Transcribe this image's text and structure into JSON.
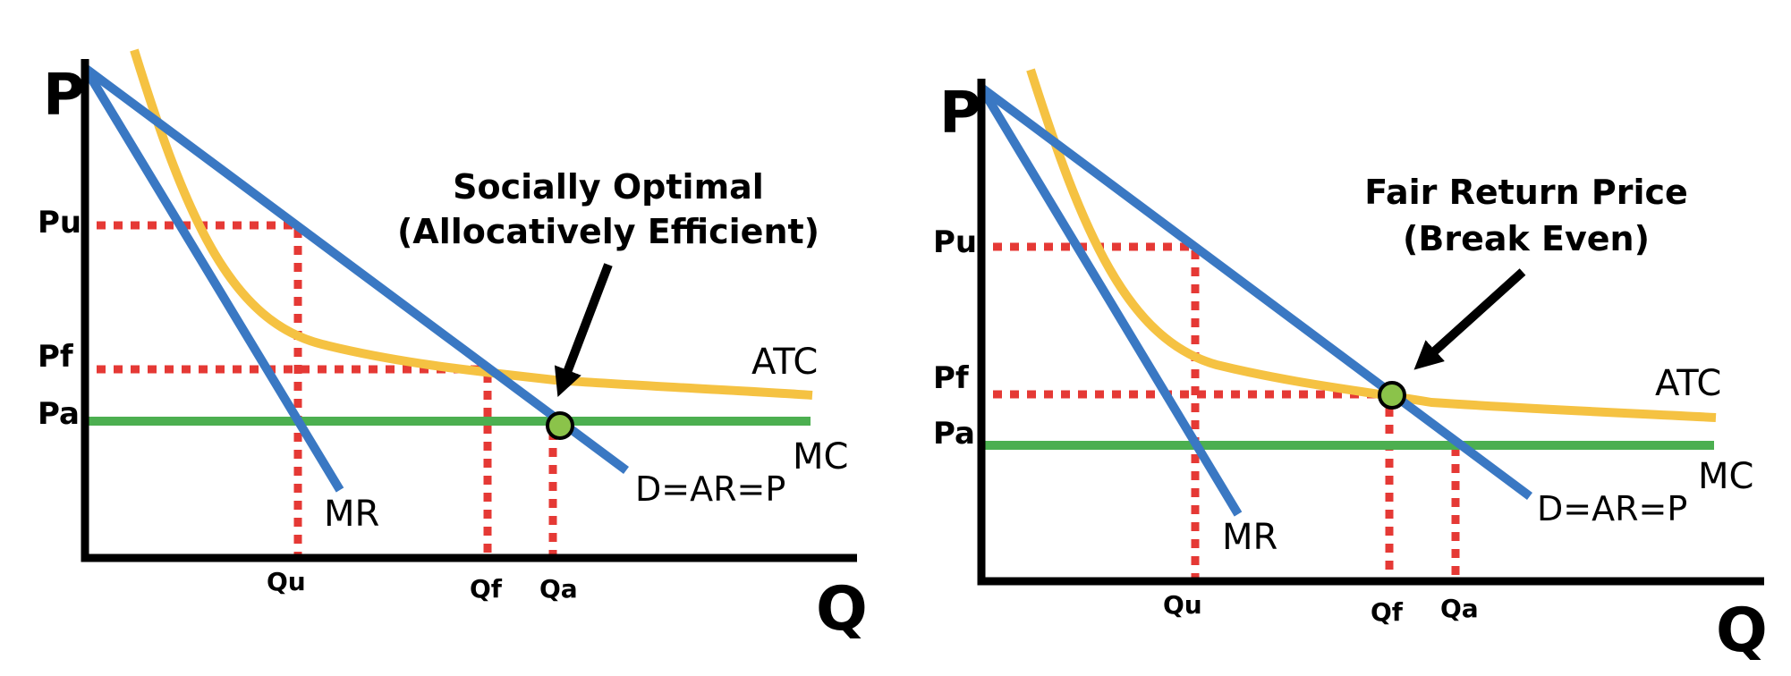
{
  "colors": {
    "demand": "#3a78c3",
    "mr": "#3a78c3",
    "atc": "#f5c242",
    "mc": "#4caf50",
    "guides": "#e53935",
    "point": "#8bc34a",
    "axes": "#000000"
  },
  "panels": [
    {
      "axis_y_label": "P",
      "axis_x_label": "Q",
      "price_labels": {
        "pu": "Pu",
        "pf": "Pf",
        "pa": "Pa"
      },
      "qty_labels": {
        "qu": "Qu",
        "qf": "Qf",
        "qa": "Qa"
      },
      "curve_labels": {
        "atc": "ATC",
        "mc": "MC",
        "mr": "MR",
        "demand": "D=AR=P"
      },
      "annotation": {
        "line1": "Socially Optimal",
        "line2": "(Allocatively Efficient)"
      },
      "marked_point": "Qa"
    },
    {
      "axis_y_label": "P",
      "axis_x_label": "Q",
      "price_labels": {
        "pu": "Pu",
        "pf": "Pf",
        "pa": "Pa"
      },
      "qty_labels": {
        "qu": "Qu",
        "qf": "Qf",
        "qa": "Qa"
      },
      "curve_labels": {
        "atc": "ATC",
        "mc": "MC",
        "mr": "MR",
        "demand": "D=AR=P"
      },
      "annotation": {
        "line1": "Fair Return Price",
        "line2": "(Break Even)"
      },
      "marked_point": "Qf"
    }
  ]
}
